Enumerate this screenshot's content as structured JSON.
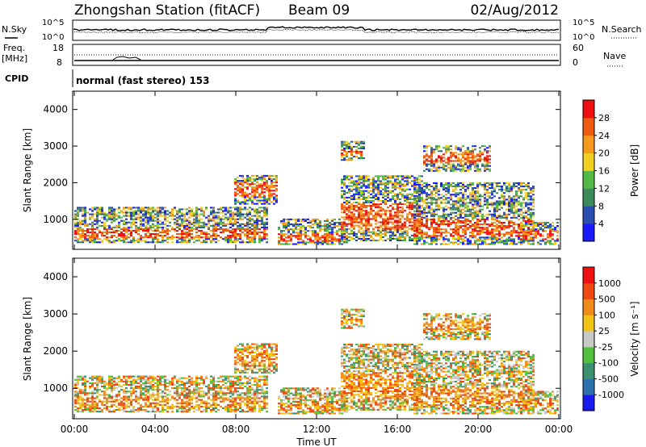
{
  "header": {
    "title": "Zhongshan Station (fitACF)",
    "beam": "Beam 09",
    "date": "02/Aug/2012"
  },
  "noise_panel": {
    "left_label": "N.Sky",
    "right_label": "N.Search",
    "left_ticks": [
      "10^5",
      "10^0"
    ],
    "right_ticks": [
      "10^5",
      "10^0"
    ]
  },
  "freq_panel": {
    "left_label_1": "Freq.",
    "left_label_2": "[MHz]",
    "right_label": "Nave",
    "left_ticks": [
      "18",
      "8"
    ],
    "right_ticks": [
      "60",
      "0"
    ]
  },
  "cpid": {
    "label": "CPID",
    "value": "normal (fast stereo) 153"
  },
  "chart_data": [
    {
      "type": "heatmap",
      "ylabel": "Slant Range [km]",
      "y_ticks": [
        1000,
        2000,
        3000,
        4000
      ],
      "ylim": [
        180,
        4500
      ],
      "x_ticks": [
        "00:00",
        "04:00",
        "08:00",
        "12:00",
        "16:00",
        "20:00",
        "00:00"
      ],
      "colorbar": {
        "label": "Power [dB]",
        "tick_labels": [
          "4",
          "8",
          "12",
          "16",
          "20",
          "24",
          "28"
        ],
        "colors": [
          "#1a1aff",
          "#2b4fb0",
          "#3c8a5a",
          "#54b847",
          "#f0d020",
          "#f59a1c",
          "#ee5a10",
          "#ee1010"
        ]
      }
    },
    {
      "type": "heatmap",
      "ylabel": "Slant Range [km]",
      "y_ticks": [
        1000,
        2000,
        3000,
        4000
      ],
      "ylim": [
        180,
        4500
      ],
      "x_ticks": [
        "00:00",
        "04:00",
        "08:00",
        "12:00",
        "16:00",
        "20:00",
        "00:00"
      ],
      "xlabel": "Time UT",
      "colorbar": {
        "label": "Velocity [m s⁻¹]",
        "tick_labels": [
          "1000",
          "500",
          "100",
          "25",
          "-25",
          "-100",
          "-500",
          "-1000"
        ],
        "colors": [
          "#1a1aee",
          "#2e6fae",
          "#3c9070",
          "#54c040",
          "#c8c8c8",
          "#f2c418",
          "#f08a18",
          "#ee4a10",
          "#ee1010"
        ]
      }
    }
  ]
}
